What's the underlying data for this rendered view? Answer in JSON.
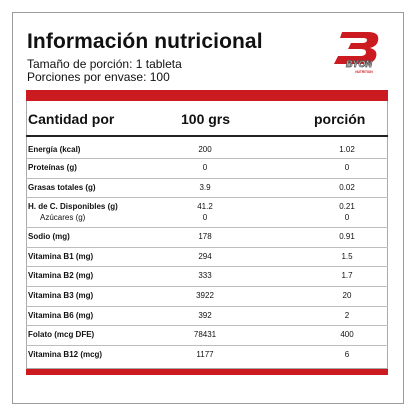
{
  "title": "Información nutricional",
  "serving_size": "Tamaño de porción: 1 tableta",
  "servings": "Porciones por envase: 100",
  "brand": {
    "name": "BYON",
    "tagline": "NUTRITION",
    "color": "#cc1a21"
  },
  "table": {
    "headers": {
      "name": "Cantidad por",
      "per100": "100 grs",
      "portion": "porción"
    },
    "rows": [
      {
        "name": "Energía (kcal)",
        "per100": "200",
        "portion": "1.02"
      },
      {
        "name": "Proteínas (g)",
        "per100": "0",
        "portion": "0"
      },
      {
        "name": "Grasas totales (g)",
        "per100": "3.9",
        "portion": "0.02"
      },
      {
        "name": "H. de C. Disponibles (g)",
        "per100": "41.2",
        "portion": "0.21",
        "sub": {
          "name": "Azúcares (g)",
          "per100": "0",
          "portion": "0"
        }
      },
      {
        "name": "Sodio (mg)",
        "per100": "178",
        "portion": "0.91"
      },
      {
        "name": "Vitamina B1 (mg)",
        "per100": "294",
        "portion": "1.5"
      },
      {
        "name": "Vitamina B2 (mg)",
        "per100": "333",
        "portion": "1.7"
      },
      {
        "name": "Vitamina B3 (mg)",
        "per100": "3922",
        "portion": "20"
      },
      {
        "name": "Vitamina B6 (mg)",
        "per100": "392",
        "portion": "2"
      },
      {
        "name": "Folato (mcg DFE)",
        "per100": "78431",
        "portion": "400"
      },
      {
        "name": "Vitamina B12 (mcg)",
        "per100": "1177",
        "portion": "6"
      }
    ]
  }
}
